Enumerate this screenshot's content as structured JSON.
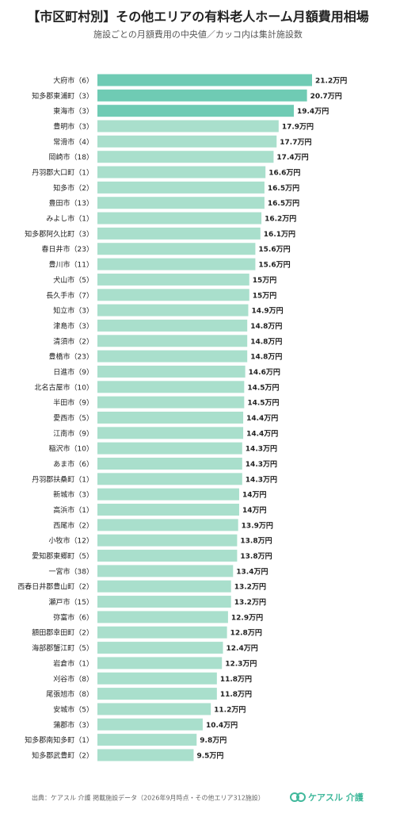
{
  "chart_data": {
    "type": "bar",
    "orientation": "horizontal",
    "title": "【市区町村別】その他エリアの有料老人ホーム月額費用相場",
    "subtitle": "施設ごとの月額費用の中央値／カッコ内は集計施設数",
    "categories": [
      "大府市（6）",
      "知多郡東浦町（3）",
      "東海市（3）",
      "豊明市（3）",
      "常滑市（4）",
      "岡崎市（18）",
      "丹羽郡大口町（1）",
      "知多市（2）",
      "豊田市（13）",
      "みよし市（1）",
      "知多郡阿久比町（3）",
      "春日井市（23）",
      "豊川市（11）",
      "犬山市（5）",
      "長久手市（7）",
      "知立市（3）",
      "津島市（3）",
      "清須市（2）",
      "豊橋市（23）",
      "日進市（9）",
      "北名古屋市（10）",
      "半田市（9）",
      "愛西市（5）",
      "江南市（9）",
      "稲沢市（10）",
      "あま市（6）",
      "丹羽郡扶桑町（1）",
      "新城市（3）",
      "高浜市（1）",
      "西尾市（2）",
      "小牧市（12）",
      "愛知郡東郷町（5）",
      "一宮市（38）",
      "西春日井郡豊山町（2）",
      "瀬戸市（15）",
      "弥富市（6）",
      "額田郡幸田町（2）",
      "海部郡蟹江町（5）",
      "岩倉市（1）",
      "刈谷市（8）",
      "尾張旭市（8）",
      "安城市（5）",
      "蒲郡市（3）",
      "知多郡南知多町（1）",
      "知多郡武豊町（2）"
    ],
    "values": [
      21.2,
      20.7,
      19.4,
      17.9,
      17.7,
      17.4,
      16.6,
      16.5,
      16.5,
      16.2,
      16.1,
      15.6,
      15.6,
      15,
      15,
      14.9,
      14.8,
      14.8,
      14.8,
      14.6,
      14.5,
      14.5,
      14.4,
      14.4,
      14.3,
      14.3,
      14.3,
      14,
      14,
      13.9,
      13.8,
      13.8,
      13.4,
      13.2,
      13.2,
      12.9,
      12.8,
      12.4,
      12.3,
      11.8,
      11.8,
      11.2,
      10.4,
      9.8,
      9.5
    ],
    "value_labels": [
      "21.2万円",
      "20.7万円",
      "19.4万円",
      "17.9万円",
      "17.7万円",
      "17.4万円",
      "16.6万円",
      "16.5万円",
      "16.5万円",
      "16.2万円",
      "16.1万円",
      "15.6万円",
      "15.6万円",
      "15万円",
      "15万円",
      "14.9万円",
      "14.8万円",
      "14.8万円",
      "14.8万円",
      "14.6万円",
      "14.5万円",
      "14.5万円",
      "14.4万円",
      "14.4万円",
      "14.3万円",
      "14.3万円",
      "14.3万円",
      "14万円",
      "14万円",
      "13.9万円",
      "13.8万円",
      "13.8万円",
      "13.4万円",
      "13.2万円",
      "13.2万円",
      "12.9万円",
      "12.8万円",
      "12.4万円",
      "12.3万円",
      "11.8万円",
      "11.8万円",
      "11.2万円",
      "10.4万円",
      "9.8万円",
      "9.5万円"
    ],
    "colors": [
      "#6fcbb4",
      "#6fcbb4",
      "#6fcbb4",
      "#a9dfcc",
      "#a9dfcc",
      "#a9dfcc",
      "#a9dfcc",
      "#a9dfcc",
      "#a9dfcc",
      "#a9dfcc",
      "#a9dfcc",
      "#a9dfcc",
      "#a9dfcc",
      "#a9dfcc",
      "#a9dfcc",
      "#a9dfcc",
      "#a9dfcc",
      "#a9dfcc",
      "#a9dfcc",
      "#a9dfcc",
      "#a9dfcc",
      "#a9dfcc",
      "#a9dfcc",
      "#a9dfcc",
      "#a9dfcc",
      "#a9dfcc",
      "#a9dfcc",
      "#a9dfcc",
      "#a9dfcc",
      "#a9dfcc",
      "#a9dfcc",
      "#a9dfcc",
      "#a9dfcc",
      "#a9dfcc",
      "#a9dfcc",
      "#a9dfcc",
      "#a9dfcc",
      "#a9dfcc",
      "#a9dfcc",
      "#a9dfcc",
      "#a9dfcc",
      "#a9dfcc",
      "#a9dfcc",
      "#a9dfcc",
      "#a9dfcc"
    ],
    "source": "出典：ケアスル 介護 掲載施設データ（2026年9月時点・その他エリア312施設）",
    "logo": "ケアスル 介護"
  }
}
